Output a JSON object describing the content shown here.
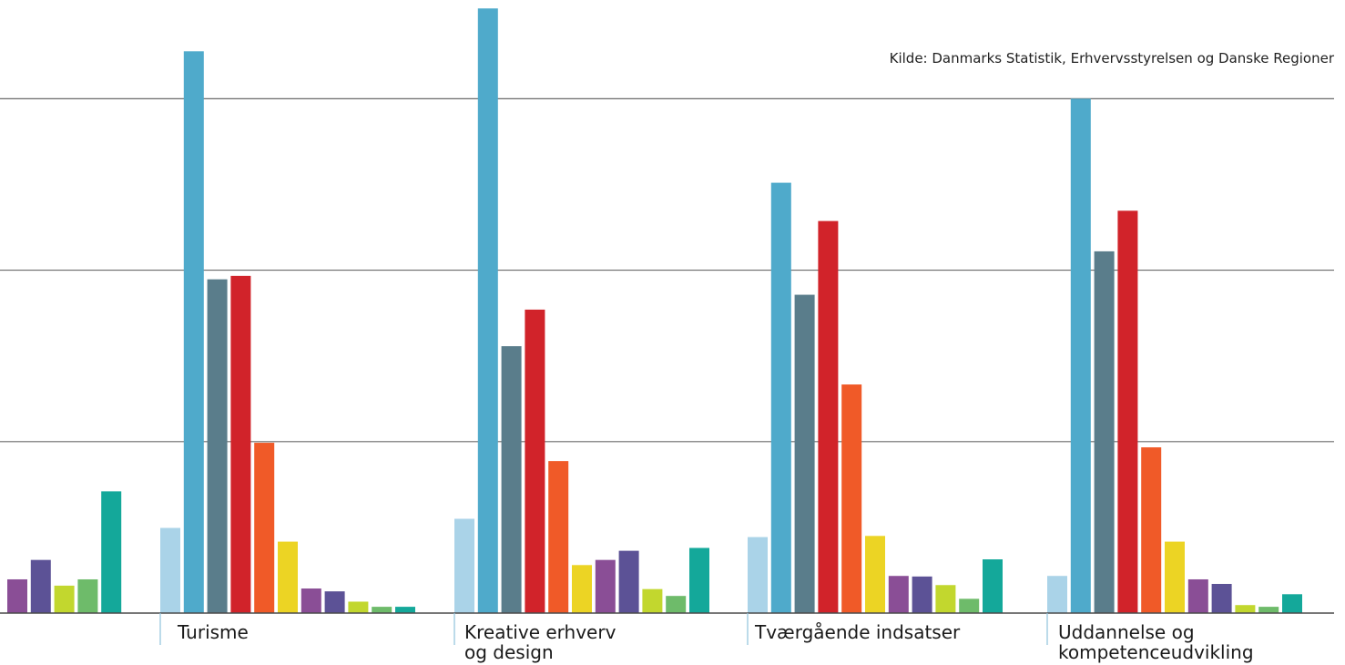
{
  "source_note": "Kilde: Danmarks Statistik, Erhvervsstyrelsen og Danske Regioner",
  "chart_data": {
    "type": "bar",
    "ylim": [
      0,
      100
    ],
    "gridlines": [
      30,
      60,
      90
    ],
    "grid": true,
    "categories": [
      {
        "label_lines": []
      },
      {
        "label_lines": [
          "Turisme"
        ]
      },
      {
        "label_lines": [
          "Kreative erhverv",
          "og design"
        ]
      },
      {
        "label_lines": [
          "Tværgående indsatser"
        ]
      },
      {
        "label_lines": [
          "Uddannelse og",
          "kompetenceudvikling"
        ]
      }
    ],
    "series": [
      {
        "color": "#aad3e8",
        "values": [
          null,
          14.9,
          16.5,
          13.3,
          6.5
        ]
      },
      {
        "color": "#4faacb",
        "values": [
          null,
          98.3,
          105.8,
          75.3,
          90.0
        ]
      },
      {
        "color": "#5a7d8b",
        "values": [
          null,
          58.4,
          46.7,
          55.7,
          63.3
        ]
      },
      {
        "color": "#d1232a",
        "values": [
          null,
          59.0,
          53.1,
          68.6,
          70.4
        ]
      },
      {
        "color": "#f05a28",
        "values": [
          null,
          29.8,
          26.6,
          40.0,
          29.0
        ]
      },
      {
        "color": "#ecd424",
        "values": [
          null,
          12.5,
          8.4,
          13.5,
          12.5
        ]
      },
      {
        "color": "#8a4e96",
        "values": [
          5.9,
          4.3,
          9.3,
          6.5,
          5.9
        ]
      },
      {
        "color": "#5c5296",
        "values": [
          9.3,
          3.8,
          10.9,
          6.4,
          5.1
        ]
      },
      {
        "color": "#c2d72e",
        "values": [
          4.8,
          2.0,
          4.2,
          4.9,
          1.4
        ]
      },
      {
        "color": "#6ebb6a",
        "values": [
          5.9,
          1.1,
          3.0,
          2.5,
          1.1
        ]
      },
      {
        "color": "#14a89a",
        "values": [
          21.3,
          1.1,
          11.4,
          9.4,
          3.3
        ]
      }
    ]
  }
}
